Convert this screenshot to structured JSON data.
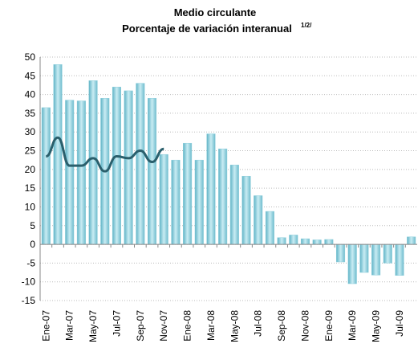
{
  "chart_data": {
    "type": "bar",
    "title": "Medio circulante",
    "subtitle": "Porcentaje de variación interanual",
    "subtitle_note": "1/2/",
    "categories": [
      "Ene-07",
      null,
      "Mar-07",
      null,
      "May-07",
      null,
      "Jul-07",
      null,
      "Sep-07",
      null,
      "Nov-07",
      null,
      "Ene-08",
      null,
      "Mar-08",
      null,
      "May-08",
      null,
      "Jul-08",
      null,
      "Sep-08",
      null,
      "Nov-08",
      null,
      "Ene-09",
      null,
      "Mar-09",
      null,
      "May-09",
      null,
      "Jul-09",
      null
    ],
    "series": [
      {
        "type": "bar",
        "color": "#8fcfdc",
        "values": [
          36.5,
          48,
          38.5,
          38.3,
          43.7,
          39,
          42,
          41,
          43,
          39,
          24,
          22.5,
          27,
          22.5,
          29.5,
          25.5,
          21.2,
          18.2,
          13,
          8.8,
          1.8,
          2.5,
          1.5,
          1.2,
          1.3,
          -4.7,
          -10.5,
          -7.5,
          -8.2,
          -5,
          -8.3,
          2
        ]
      },
      {
        "type": "line",
        "color": "#2a5f6c",
        "values": [
          23.5,
          28.5,
          21,
          21,
          23,
          19.5,
          23.5,
          23,
          25,
          22,
          25.5,
          null,
          null,
          null,
          null,
          null,
          null,
          null,
          null,
          null,
          null,
          null,
          null,
          null,
          null,
          null,
          null,
          null,
          null,
          null,
          null,
          null
        ]
      }
    ],
    "ylim": [
      -15,
      50
    ],
    "yticks": [
      -15,
      -10,
      -5,
      0,
      5,
      10,
      15,
      20,
      25,
      30,
      35,
      40,
      45,
      50
    ],
    "grid": true
  }
}
